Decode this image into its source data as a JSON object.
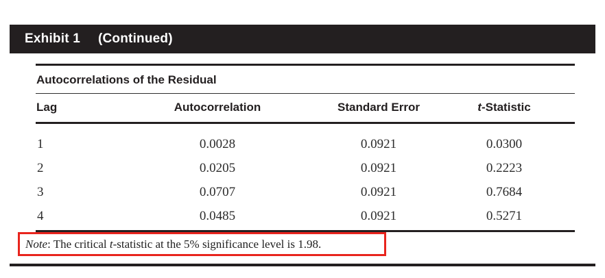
{
  "exhibit_bar": {
    "label": "Exhibit 1",
    "continued": "(Continued)"
  },
  "table": {
    "title": "Autocorrelations of the Residual",
    "columns": {
      "lag": "Lag",
      "autocorrelation": "Autocorrelation",
      "standard_error": "Standard Error",
      "t_statistic_italic_t": "t",
      "t_statistic_rest": "-Statistic"
    },
    "rows": [
      {
        "lag": "1",
        "autocorrelation": "0.0028",
        "standard_error": "0.0921",
        "t_statistic": "0.0300"
      },
      {
        "lag": "2",
        "autocorrelation": "0.0205",
        "standard_error": "0.0921",
        "t_statistic": "0.2223"
      },
      {
        "lag": "3",
        "autocorrelation": "0.0707",
        "standard_error": "0.0921",
        "t_statistic": "0.7684"
      },
      {
        "lag": "4",
        "autocorrelation": "0.0485",
        "standard_error": "0.0921",
        "t_statistic": "0.5271"
      }
    ]
  },
  "note": {
    "label_italic": "Note",
    "text_before_t": ": The critical ",
    "t_italic": "t",
    "text_after_t": "-statistic at the 5% significance level is 1.98."
  },
  "colors": {
    "bar_black": "#231f20",
    "rule_black": "#231f20",
    "note_highlight_red": "#e8241d"
  }
}
